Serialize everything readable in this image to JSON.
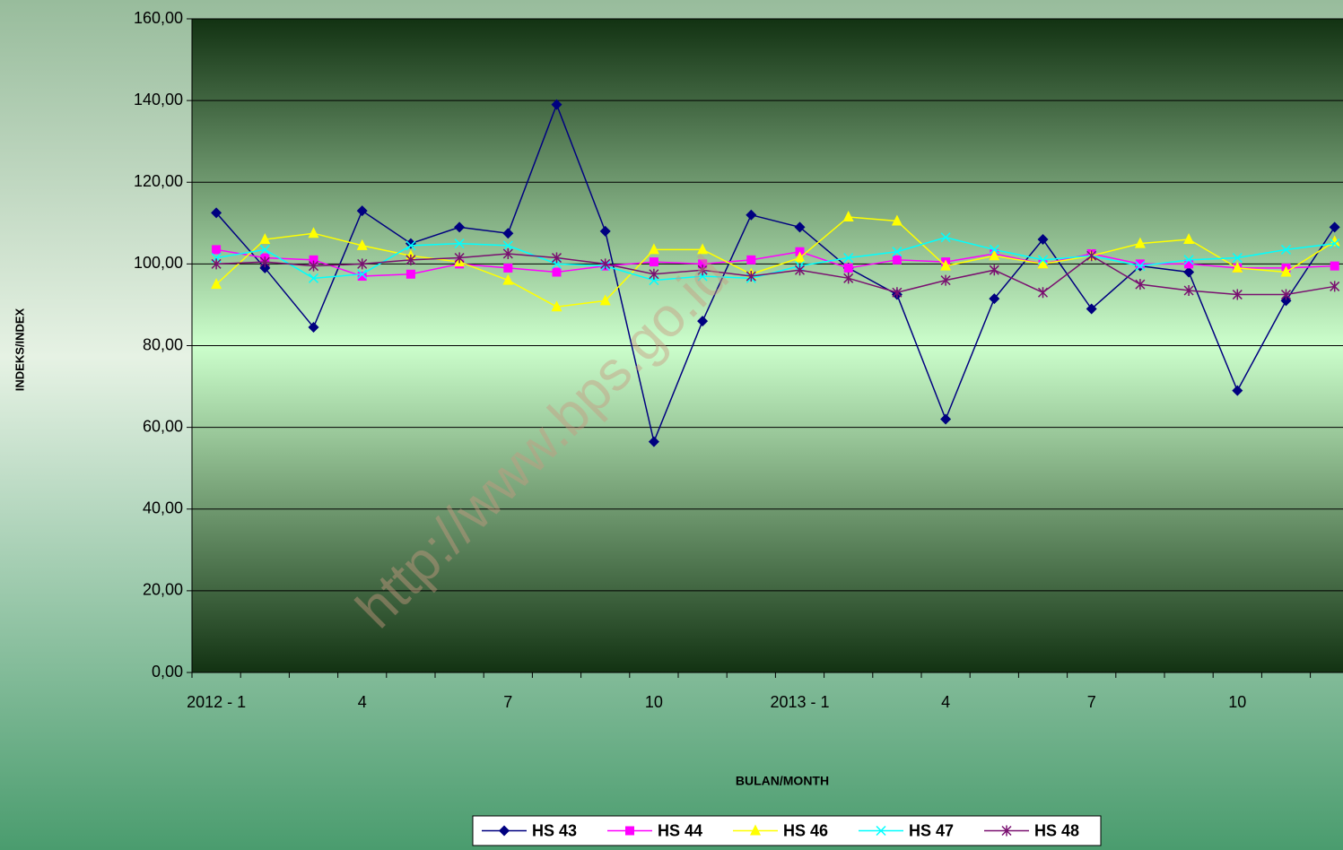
{
  "chart_data": {
    "type": "line",
    "xlabel": "BULAN/MONTH",
    "ylabel": "INDEKS/INDEX",
    "watermark": "http://www.bps.go.id",
    "categories": [
      "2012 - 1",
      null,
      null,
      "4",
      null,
      null,
      "7",
      null,
      null,
      "10",
      null,
      null,
      "2013 - 1",
      null,
      null,
      "4",
      null,
      null,
      "7",
      null,
      null,
      "10",
      null,
      null
    ],
    "ylim": [
      0,
      160
    ],
    "yticks": [
      {
        "value": 0,
        "label": "0,00"
      },
      {
        "value": 20,
        "label": "20,00"
      },
      {
        "value": 40,
        "label": "40,00"
      },
      {
        "value": 60,
        "label": "60,00"
      },
      {
        "value": 80,
        "label": "80,00"
      },
      {
        "value": 100,
        "label": "100,00"
      },
      {
        "value": 120,
        "label": "120,00"
      },
      {
        "value": 140,
        "label": "140,00"
      },
      {
        "value": 160,
        "label": "160,00"
      }
    ],
    "grid": true,
    "legend": "bottom",
    "series": [
      {
        "name": "HS 43",
        "color": "#000080",
        "marker": "diamond",
        "values": [
          112.5,
          99,
          84.5,
          113,
          105,
          109,
          107.5,
          139,
          108,
          56.5,
          86,
          112,
          109,
          99,
          92.5,
          62,
          91.5,
          106,
          89,
          99.5,
          98,
          69,
          91,
          109
        ]
      },
      {
        "name": "HS 44",
        "color": "#ff00ff",
        "marker": "square",
        "values": [
          103.5,
          101.5,
          101,
          97,
          97.5,
          100,
          99,
          98,
          99.5,
          100.5,
          100,
          101,
          103,
          99,
          101,
          100.5,
          102.5,
          100,
          102.5,
          100,
          100,
          99,
          99,
          99.5
        ]
      },
      {
        "name": "HS 46",
        "color": "#ffff00",
        "marker": "triangle",
        "values": [
          95,
          106,
          107.5,
          104.5,
          102,
          100.5,
          96,
          89.5,
          91,
          103.5,
          103.5,
          97.5,
          101.5,
          111.5,
          110.5,
          99.5,
          102,
          100,
          102,
          105,
          106,
          99,
          98,
          105.5
        ]
      },
      {
        "name": "HS 47",
        "color": "#00ffff",
        "marker": "x",
        "values": [
          101.5,
          103.5,
          96.5,
          97.5,
          104.5,
          105,
          104.5,
          100,
          99.5,
          96,
          97,
          96.5,
          99.5,
          101.5,
          103,
          106.5,
          103.5,
          101,
          102,
          99.5,
          101,
          101.5,
          103.5,
          105
        ]
      },
      {
        "name": "HS 48",
        "color": "#7a1070",
        "marker": "star",
        "values": [
          100,
          100.5,
          99.5,
          100,
          101,
          101.5,
          102.5,
          101.5,
          100,
          97.5,
          98.5,
          97,
          98.5,
          96.5,
          93,
          96,
          98.5,
          93,
          102,
          95,
          93.5,
          92.5,
          92.5,
          94.5
        ]
      }
    ]
  }
}
